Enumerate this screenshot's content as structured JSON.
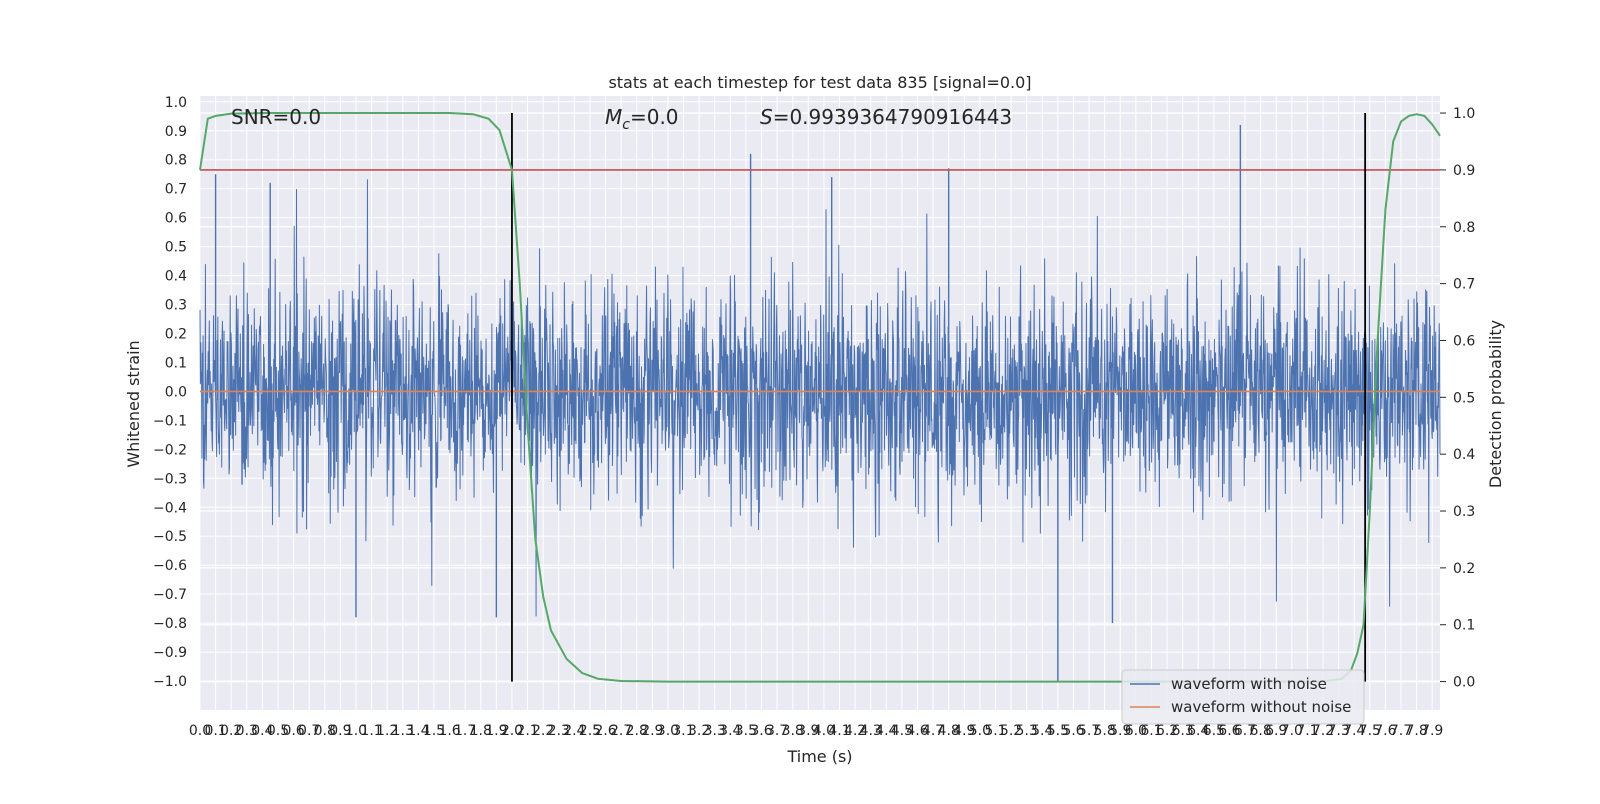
{
  "chart_data": {
    "type": "line",
    "title": "stats at each timestep for test data 835 [signal=0.0]",
    "xlabel": "Time (s)",
    "ylabel": "Whitened strain",
    "y2label": "Detection probability",
    "xlim": [
      0.0,
      7.95
    ],
    "ylim": [
      -1.1,
      1.02
    ],
    "y2lim": [
      -0.05,
      1.03
    ],
    "grid": true,
    "legend_position": "bottom-right",
    "x_ticks": [
      "0.0",
      "0.1",
      "0.2",
      "0.3",
      "0.4",
      "0.5",
      "0.6",
      "0.7",
      "0.8",
      "0.9",
      "1.0",
      "1.1",
      "1.2",
      "1.3",
      "1.4",
      "1.5",
      "1.6",
      "1.7",
      "1.8",
      "1.9",
      "2.0",
      "2.1",
      "2.2",
      "2.3",
      "2.4",
      "2.5",
      "2.6",
      "2.7",
      "2.8",
      "2.9",
      "3.0",
      "3.1",
      "3.2",
      "3.3",
      "3.4",
      "3.5",
      "3.6",
      "3.7",
      "3.8",
      "3.9",
      "4.0",
      "4.1",
      "4.2",
      "4.3",
      "4.4",
      "4.5",
      "4.6",
      "4.7",
      "4.8",
      "4.9",
      "5.0",
      "5.1",
      "5.2",
      "5.3",
      "5.4",
      "5.5",
      "5.6",
      "5.7",
      "5.8",
      "5.9",
      "6.0",
      "6.1",
      "6.2",
      "6.3",
      "6.4",
      "6.5",
      "6.6",
      "6.7",
      "6.8",
      "6.9",
      "7.0",
      "7.1",
      "7.2",
      "7.3",
      "7.4",
      "7.5",
      "7.6",
      "7.7",
      "7.8",
      "7.9"
    ],
    "y_ticks": [
      "1.0",
      "0.9",
      "0.8",
      "0.7",
      "0.6",
      "0.5",
      "0.4",
      "0.3",
      "0.2",
      "0.1",
      "0.0",
      "−0.1",
      "−0.2",
      "−0.3",
      "−0.4",
      "−0.5",
      "−0.6",
      "−0.7",
      "−0.8",
      "−0.9",
      "−1.0"
    ],
    "y2_ticks": [
      "1.0",
      "0.9",
      "0.8",
      "0.7",
      "0.6",
      "0.5",
      "0.4",
      "0.3",
      "0.2",
      "0.1",
      "0.0"
    ],
    "annotations": {
      "snr": "SNR=0.0",
      "mc_symbol": "M",
      "mc_subscript": "c",
      "mc_value": "=0.0",
      "s_symbol": "S",
      "s_value": "=0.9939364790916443"
    },
    "threshold": {
      "value": 0.9,
      "axis": "right",
      "color": "#c44e52"
    },
    "vertical_markers": [
      2.0,
      7.47
    ],
    "series": [
      {
        "name": "waveform with noise",
        "color": "#4c72b0",
        "kind": "noise",
        "envelope": 0.32,
        "peak_range": [
          -1.0,
          0.92
        ]
      },
      {
        "name": "waveform without noise",
        "color": "#dd8452",
        "kind": "line",
        "x": [
          0.0,
          7.95
        ],
        "y": [
          0.0,
          0.0
        ]
      },
      {
        "name": "",
        "color": "#55a868",
        "kind": "probability",
        "x": [
          0.0,
          0.05,
          0.1,
          0.2,
          0.4,
          0.8,
          1.2,
          1.6,
          1.75,
          1.85,
          1.92,
          2.0,
          2.05,
          2.1,
          2.15,
          2.2,
          2.25,
          2.35,
          2.45,
          2.55,
          2.7,
          3.0,
          4.0,
          5.0,
          5.5,
          6.0,
          7.0,
          7.2,
          7.32,
          7.38,
          7.42,
          7.46,
          7.5,
          7.55,
          7.6,
          7.65,
          7.7,
          7.75,
          7.8,
          7.85,
          7.9,
          7.95
        ],
        "y": [
          0.9,
          0.99,
          0.995,
          0.999,
          1.0,
          1.0,
          1.0,
          1.0,
          0.998,
          0.99,
          0.97,
          0.9,
          0.7,
          0.45,
          0.25,
          0.15,
          0.09,
          0.04,
          0.015,
          0.005,
          0.001,
          0.0,
          0.0,
          0.0,
          0.0,
          0.0,
          0.0,
          0.0,
          0.005,
          0.02,
          0.05,
          0.1,
          0.3,
          0.6,
          0.83,
          0.95,
          0.985,
          0.995,
          0.998,
          0.995,
          0.98,
          0.96
        ]
      }
    ]
  }
}
